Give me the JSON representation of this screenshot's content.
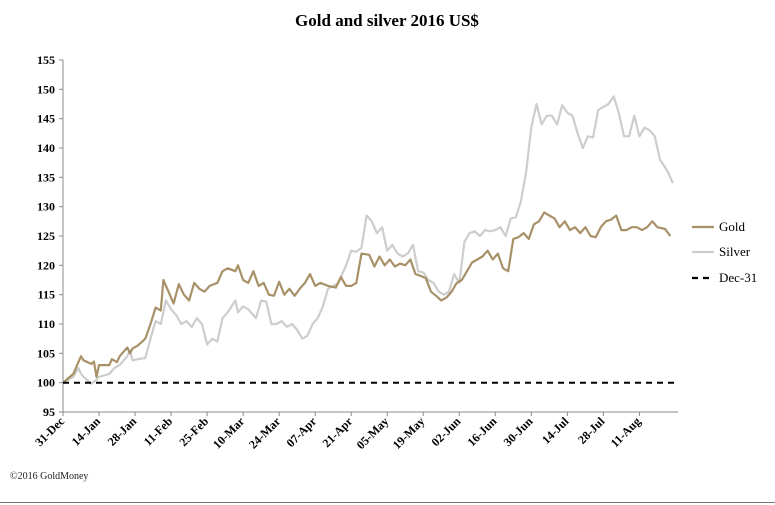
{
  "footer": {
    "copyright": "©2016 GoldMoney"
  },
  "chart_data": {
    "type": "line",
    "title": "Gold and silver 2016 US$",
    "xlabel": "",
    "ylabel": "",
    "ylim": [
      95,
      155
    ],
    "yticks": [
      95,
      100,
      105,
      110,
      115,
      120,
      125,
      130,
      135,
      140,
      145,
      150,
      155
    ],
    "xlim": [
      "2015-12-31",
      "2016-08-26"
    ],
    "xtick_labels": [
      "31-Dec",
      "14-Jan",
      "28-Jan",
      "11-Feb",
      "25-Feb",
      "10-Mar",
      "24-Mar",
      "07-Apr",
      "21-Apr",
      "05-May",
      "19-May",
      "02-Jun",
      "16-Jun",
      "30-Jun",
      "14-Jul",
      "28-Jul",
      "11-Aug"
    ],
    "xtick_dates": [
      "2015-12-31",
      "2016-01-14",
      "2016-01-28",
      "2016-02-11",
      "2016-02-25",
      "2016-03-10",
      "2016-03-24",
      "2016-04-07",
      "2016-04-21",
      "2016-05-05",
      "2016-05-19",
      "2016-06-02",
      "2016-06-16",
      "2016-06-30",
      "2016-07-14",
      "2016-07-28",
      "2016-08-11"
    ],
    "grid": false,
    "legend_position": "right",
    "series": [
      {
        "name": "Gold",
        "color": "#a89168",
        "style": "solid",
        "points": [
          [
            "2015-12-31",
            100
          ],
          [
            "2016-01-04",
            101.5
          ],
          [
            "2016-01-06",
            103.5
          ],
          [
            "2016-01-07",
            104.5
          ],
          [
            "2016-01-08",
            103.8
          ],
          [
            "2016-01-11",
            103.2
          ],
          [
            "2016-01-12",
            103.6
          ],
          [
            "2016-01-13",
            101.0
          ],
          [
            "2016-01-14",
            103.0
          ],
          [
            "2016-01-18",
            103.0
          ],
          [
            "2016-01-19",
            104.0
          ],
          [
            "2016-01-21",
            103.5
          ],
          [
            "2016-01-22",
            104.5
          ],
          [
            "2016-01-25",
            106.0
          ],
          [
            "2016-01-26",
            105.0
          ],
          [
            "2016-01-27",
            105.8
          ],
          [
            "2016-01-29",
            106.3
          ],
          [
            "2016-02-01",
            107.5
          ],
          [
            "2016-02-03",
            110.0
          ],
          [
            "2016-02-05",
            112.8
          ],
          [
            "2016-02-07",
            112.3
          ],
          [
            "2016-02-08",
            117.5
          ],
          [
            "2016-02-10",
            115.5
          ],
          [
            "2016-02-12",
            113.5
          ],
          [
            "2016-02-14",
            116.8
          ],
          [
            "2016-02-16",
            115.0
          ],
          [
            "2016-02-18",
            114.0
          ],
          [
            "2016-02-20",
            117.0
          ],
          [
            "2016-02-22",
            116.0
          ],
          [
            "2016-02-24",
            115.5
          ],
          [
            "2016-02-26",
            116.5
          ],
          [
            "2016-02-29",
            117.0
          ],
          [
            "2016-03-02",
            119.0
          ],
          [
            "2016-03-04",
            119.5
          ],
          [
            "2016-03-07",
            119.0
          ],
          [
            "2016-03-08",
            120.0
          ],
          [
            "2016-03-10",
            117.5
          ],
          [
            "2016-03-12",
            117.0
          ],
          [
            "2016-03-14",
            119.0
          ],
          [
            "2016-03-16",
            116.5
          ],
          [
            "2016-03-18",
            117.0
          ],
          [
            "2016-03-20",
            115.0
          ],
          [
            "2016-03-22",
            114.8
          ],
          [
            "2016-03-24",
            117.2
          ],
          [
            "2016-03-26",
            115.0
          ],
          [
            "2016-03-28",
            116.0
          ],
          [
            "2016-03-30",
            114.8
          ],
          [
            "2016-04-01",
            116.0
          ],
          [
            "2016-04-03",
            117.0
          ],
          [
            "2016-04-05",
            118.5
          ],
          [
            "2016-04-07",
            116.5
          ],
          [
            "2016-04-09",
            117.0
          ],
          [
            "2016-04-12",
            116.5
          ],
          [
            "2016-04-15",
            116.2
          ],
          [
            "2016-04-17",
            118.0
          ],
          [
            "2016-04-19",
            116.5
          ],
          [
            "2016-04-21",
            116.5
          ],
          [
            "2016-04-23",
            117.0
          ],
          [
            "2016-04-25",
            122.0
          ],
          [
            "2016-04-28",
            121.8
          ],
          [
            "2016-04-30",
            119.8
          ],
          [
            "2016-05-02",
            121.5
          ],
          [
            "2016-05-04",
            120.0
          ],
          [
            "2016-05-06",
            121.0
          ],
          [
            "2016-05-08",
            119.8
          ],
          [
            "2016-05-10",
            120.3
          ],
          [
            "2016-05-12",
            120.0
          ],
          [
            "2016-05-14",
            121.0
          ],
          [
            "2016-05-16",
            118.5
          ],
          [
            "2016-05-18",
            118.2
          ],
          [
            "2016-05-20",
            117.8
          ],
          [
            "2016-05-22",
            115.5
          ],
          [
            "2016-05-24",
            114.8
          ],
          [
            "2016-05-26",
            114.0
          ],
          [
            "2016-05-28",
            114.5
          ],
          [
            "2016-05-30",
            115.5
          ],
          [
            "2016-06-01",
            117.0
          ],
          [
            "2016-06-03",
            117.5
          ],
          [
            "2016-06-05",
            119.0
          ],
          [
            "2016-06-07",
            120.5
          ],
          [
            "2016-06-09",
            121.0
          ],
          [
            "2016-06-11",
            121.5
          ],
          [
            "2016-06-13",
            122.5
          ],
          [
            "2016-06-15",
            121.0
          ],
          [
            "2016-06-17",
            122.0
          ],
          [
            "2016-06-19",
            119.5
          ],
          [
            "2016-06-21",
            119.0
          ],
          [
            "2016-06-23",
            124.5
          ],
          [
            "2016-06-25",
            124.8
          ],
          [
            "2016-06-27",
            125.5
          ],
          [
            "2016-06-29",
            124.5
          ],
          [
            "2016-07-01",
            127.0
          ],
          [
            "2016-07-03",
            127.5
          ],
          [
            "2016-07-05",
            129.0
          ],
          [
            "2016-07-07",
            128.5
          ],
          [
            "2016-07-09",
            128.0
          ],
          [
            "2016-07-11",
            126.5
          ],
          [
            "2016-07-13",
            127.5
          ],
          [
            "2016-07-15",
            126.0
          ],
          [
            "2016-07-17",
            126.5
          ],
          [
            "2016-07-19",
            125.5
          ],
          [
            "2016-07-21",
            126.5
          ],
          [
            "2016-07-23",
            125.0
          ],
          [
            "2016-07-25",
            124.8
          ],
          [
            "2016-07-27",
            126.5
          ],
          [
            "2016-07-29",
            127.5
          ],
          [
            "2016-07-31",
            127.8
          ],
          [
            "2016-08-02",
            128.5
          ],
          [
            "2016-08-04",
            126.0
          ],
          [
            "2016-08-06",
            126.0
          ],
          [
            "2016-08-08",
            126.5
          ],
          [
            "2016-08-10",
            126.5
          ],
          [
            "2016-08-12",
            126.0
          ],
          [
            "2016-08-14",
            126.5
          ],
          [
            "2016-08-16",
            127.5
          ],
          [
            "2016-08-18",
            126.5
          ],
          [
            "2016-08-21",
            126.2
          ],
          [
            "2016-08-23",
            125.0
          ]
        ]
      },
      {
        "name": "Silver",
        "color": "#cdcdcd",
        "style": "solid",
        "points": [
          [
            "2015-12-31",
            100
          ],
          [
            "2016-01-04",
            101.0
          ],
          [
            "2016-01-06",
            102.5
          ],
          [
            "2016-01-07",
            101.5
          ],
          [
            "2016-01-08",
            101.0
          ],
          [
            "2016-01-11",
            99.8
          ],
          [
            "2016-01-13",
            100.5
          ],
          [
            "2016-01-14",
            101.0
          ],
          [
            "2016-01-18",
            101.5
          ],
          [
            "2016-01-20",
            102.5
          ],
          [
            "2016-01-22",
            103.0
          ],
          [
            "2016-01-25",
            104.5
          ],
          [
            "2016-01-26",
            105.5
          ],
          [
            "2016-01-27",
            103.8
          ],
          [
            "2016-01-29",
            104.0
          ],
          [
            "2016-02-01",
            104.2
          ],
          [
            "2016-02-03",
            107.5
          ],
          [
            "2016-02-05",
            110.5
          ],
          [
            "2016-02-07",
            110.0
          ],
          [
            "2016-02-09",
            114.0
          ],
          [
            "2016-02-11",
            112.5
          ],
          [
            "2016-02-13",
            111.5
          ],
          [
            "2016-02-15",
            110.0
          ],
          [
            "2016-02-17",
            110.5
          ],
          [
            "2016-02-19",
            109.5
          ],
          [
            "2016-02-21",
            111.0
          ],
          [
            "2016-02-23",
            110.0
          ],
          [
            "2016-02-25",
            106.5
          ],
          [
            "2016-02-27",
            107.5
          ],
          [
            "2016-02-29",
            107.0
          ],
          [
            "2016-03-02",
            111.0
          ],
          [
            "2016-03-04",
            112.0
          ],
          [
            "2016-03-07",
            114.0
          ],
          [
            "2016-03-08",
            112.0
          ],
          [
            "2016-03-10",
            113.0
          ],
          [
            "2016-03-12",
            112.5
          ],
          [
            "2016-03-15",
            111.0
          ],
          [
            "2016-03-17",
            114.0
          ],
          [
            "2016-03-19",
            113.8
          ],
          [
            "2016-03-21",
            110.0
          ],
          [
            "2016-03-23",
            110.0
          ],
          [
            "2016-03-25",
            110.5
          ],
          [
            "2016-03-27",
            109.5
          ],
          [
            "2016-03-29",
            110.0
          ],
          [
            "2016-03-31",
            109.0
          ],
          [
            "2016-04-02",
            107.5
          ],
          [
            "2016-04-04",
            108.0
          ],
          [
            "2016-04-06",
            110.0
          ],
          [
            "2016-04-08",
            111.0
          ],
          [
            "2016-04-10",
            113.0
          ],
          [
            "2016-04-12",
            116.0
          ],
          [
            "2016-04-14",
            116.5
          ],
          [
            "2016-04-16",
            117.0
          ],
          [
            "2016-04-19",
            120.0
          ],
          [
            "2016-04-21",
            122.5
          ],
          [
            "2016-04-23",
            122.3
          ],
          [
            "2016-04-25",
            123.0
          ],
          [
            "2016-04-27",
            128.5
          ],
          [
            "2016-04-29",
            127.5
          ],
          [
            "2016-05-01",
            125.5
          ],
          [
            "2016-05-03",
            126.5
          ],
          [
            "2016-05-05",
            122.5
          ],
          [
            "2016-05-07",
            123.5
          ],
          [
            "2016-05-09",
            122.0
          ],
          [
            "2016-05-11",
            121.5
          ],
          [
            "2016-05-13",
            122.0
          ],
          [
            "2016-05-15",
            123.5
          ],
          [
            "2016-05-17",
            119.0
          ],
          [
            "2016-05-19",
            118.8
          ],
          [
            "2016-05-21",
            117.5
          ],
          [
            "2016-05-23",
            117.0
          ],
          [
            "2016-05-25",
            115.5
          ],
          [
            "2016-05-27",
            115.0
          ],
          [
            "2016-05-29",
            115.5
          ],
          [
            "2016-05-31",
            118.5
          ],
          [
            "2016-06-02",
            117.0
          ],
          [
            "2016-06-04",
            124.0
          ],
          [
            "2016-06-06",
            125.5
          ],
          [
            "2016-06-08",
            125.8
          ],
          [
            "2016-06-10",
            125.0
          ],
          [
            "2016-06-12",
            126.0
          ],
          [
            "2016-06-14",
            125.8
          ],
          [
            "2016-06-16",
            126.0
          ],
          [
            "2016-06-18",
            126.5
          ],
          [
            "2016-06-20",
            125.0
          ],
          [
            "2016-06-22",
            128.0
          ],
          [
            "2016-06-24",
            128.2
          ],
          [
            "2016-06-26",
            131.0
          ],
          [
            "2016-06-28",
            136.0
          ],
          [
            "2016-06-30",
            143.5
          ],
          [
            "2016-07-02",
            147.5
          ],
          [
            "2016-07-04",
            144.0
          ],
          [
            "2016-07-06",
            145.5
          ],
          [
            "2016-07-08",
            145.5
          ],
          [
            "2016-07-10",
            144.0
          ],
          [
            "2016-07-12",
            147.3
          ],
          [
            "2016-07-14",
            146.0
          ],
          [
            "2016-07-16",
            145.5
          ],
          [
            "2016-07-18",
            142.5
          ],
          [
            "2016-07-20",
            140.0
          ],
          [
            "2016-07-22",
            142.0
          ],
          [
            "2016-07-24",
            141.8
          ],
          [
            "2016-07-26",
            146.5
          ],
          [
            "2016-07-28",
            147.0
          ],
          [
            "2016-07-30",
            147.5
          ],
          [
            "2016-08-01",
            148.8
          ],
          [
            "2016-08-03",
            146.0
          ],
          [
            "2016-08-05",
            142.0
          ],
          [
            "2016-08-07",
            142.0
          ],
          [
            "2016-08-09",
            145.5
          ],
          [
            "2016-08-11",
            142.0
          ],
          [
            "2016-08-13",
            143.5
          ],
          [
            "2016-08-15",
            143.0
          ],
          [
            "2016-08-17",
            142.0
          ],
          [
            "2016-08-19",
            138.0
          ],
          [
            "2016-08-22",
            136.0
          ],
          [
            "2016-08-24",
            134.0
          ]
        ]
      },
      {
        "name": "Dec-31",
        "color": "#000000",
        "style": "dashed",
        "points": [
          [
            "2015-12-31",
            100
          ],
          [
            "2016-08-26",
            100
          ]
        ]
      }
    ]
  }
}
